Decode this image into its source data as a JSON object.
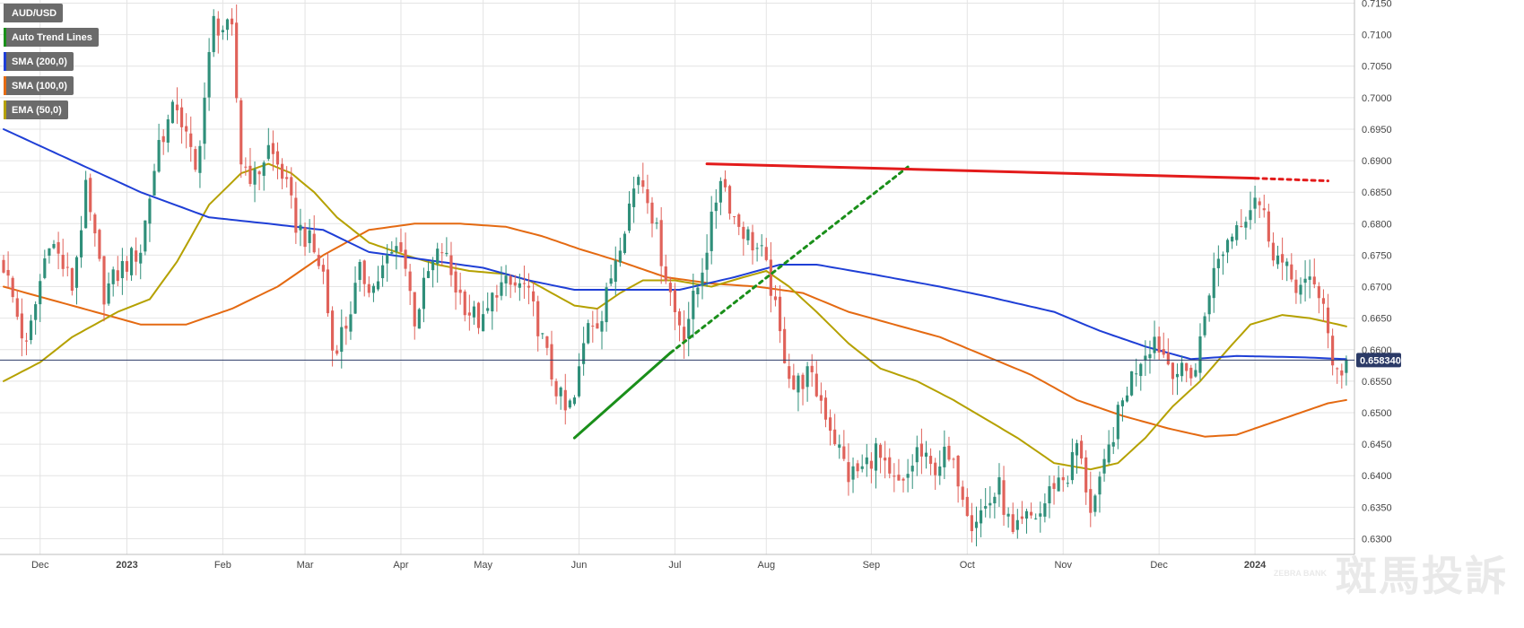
{
  "legend": [
    {
      "label": "AUD/USD",
      "color": "#6b6b6b"
    },
    {
      "label": "Auto Trend Lines",
      "color": "#1a8f1a"
    },
    {
      "label": "SMA (200,0)",
      "color": "#1f3fd6"
    },
    {
      "label": "SMA (100,0)",
      "color": "#e46a12"
    },
    {
      "label": "EMA (50,0)",
      "color": "#b5a100"
    }
  ],
  "watermark": {
    "badge": "ZEBRA BANK",
    "text": "斑馬投訴"
  },
  "chart_data": {
    "type": "candlestick",
    "symbol": "AUD/USD",
    "last_price_label": "0.658340",
    "last_price": 0.65834,
    "ylim": [
      0.6275,
      0.7155
    ],
    "y_ticks": [
      "0.6300",
      "0.6350",
      "0.6400",
      "0.6450",
      "0.6500",
      "0.6550",
      "0.6600",
      "0.6650",
      "0.6700",
      "0.6750",
      "0.6800",
      "0.6850",
      "0.6900",
      "0.6950",
      "0.7000",
      "0.7050",
      "0.7100",
      "0.7150"
    ],
    "x_ticks": [
      {
        "label": "Dec",
        "i": 8
      },
      {
        "label": "2023",
        "i": 27
      },
      {
        "label": "Feb",
        "i": 48
      },
      {
        "label": "Mar",
        "i": 66
      },
      {
        "label": "Apr",
        "i": 87
      },
      {
        "label": "May",
        "i": 105
      },
      {
        "label": "Jun",
        "i": 126
      },
      {
        "label": "Jul",
        "i": 147
      },
      {
        "label": "Aug",
        "i": 167
      },
      {
        "label": "Sep",
        "i": 190
      },
      {
        "label": "Oct",
        "i": 211
      },
      {
        "label": "Nov",
        "i": 232
      },
      {
        "label": "Dec",
        "i": 253
      },
      {
        "label": "2024",
        "i": 274
      }
    ],
    "close_anchors": [
      [
        0,
        0.6735
      ],
      [
        5,
        0.66
      ],
      [
        10,
        0.678
      ],
      [
        15,
        0.67
      ],
      [
        18,
        0.685
      ],
      [
        22,
        0.669
      ],
      [
        26,
        0.673
      ],
      [
        30,
        0.676
      ],
      [
        34,
        0.693
      ],
      [
        38,
        0.699
      ],
      [
        42,
        0.688
      ],
      [
        46,
        0.712
      ],
      [
        50,
        0.71
      ],
      [
        52,
        0.69
      ],
      [
        55,
        0.687
      ],
      [
        58,
        0.692
      ],
      [
        61,
        0.688
      ],
      [
        64,
        0.68
      ],
      [
        67,
        0.677
      ],
      [
        70,
        0.672
      ],
      [
        72,
        0.66
      ],
      [
        75,
        0.664
      ],
      [
        78,
        0.672
      ],
      [
        81,
        0.67
      ],
      [
        84,
        0.674
      ],
      [
        87,
        0.677
      ],
      [
        90,
        0.665
      ],
      [
        93,
        0.672
      ],
      [
        96,
        0.676
      ],
      [
        99,
        0.67
      ],
      [
        102,
        0.666
      ],
      [
        105,
        0.664
      ],
      [
        108,
        0.67
      ],
      [
        111,
        0.67
      ],
      [
        114,
        0.67
      ],
      [
        117,
        0.664
      ],
      [
        120,
        0.656
      ],
      [
        123,
        0.65
      ],
      [
        125,
        0.652
      ],
      [
        128,
        0.665
      ],
      [
        131,
        0.665
      ],
      [
        134,
        0.675
      ],
      [
        137,
        0.683
      ],
      [
        139,
        0.688
      ],
      [
        141,
        0.685
      ],
      [
        144,
        0.675
      ],
      [
        147,
        0.666
      ],
      [
        149,
        0.663
      ],
      [
        152,
        0.67
      ],
      [
        155,
        0.68
      ],
      [
        157,
        0.688
      ],
      [
        160,
        0.681
      ],
      [
        163,
        0.678
      ],
      [
        166,
        0.675
      ],
      [
        168,
        0.67
      ],
      [
        170,
        0.662
      ],
      [
        173,
        0.654
      ],
      [
        176,
        0.656
      ],
      [
        179,
        0.652
      ],
      [
        182,
        0.646
      ],
      [
        185,
        0.64
      ],
      [
        188,
        0.641
      ],
      [
        191,
        0.644
      ],
      [
        194,
        0.639
      ],
      [
        197,
        0.638
      ],
      [
        200,
        0.644
      ],
      [
        203,
        0.641
      ],
      [
        206,
        0.643
      ],
      [
        209,
        0.64
      ],
      [
        212,
        0.633
      ],
      [
        215,
        0.635
      ],
      [
        218,
        0.638
      ],
      [
        221,
        0.63
      ],
      [
        224,
        0.633
      ],
      [
        227,
        0.634
      ],
      [
        230,
        0.639
      ],
      [
        233,
        0.64
      ],
      [
        235,
        0.645
      ],
      [
        238,
        0.635
      ],
      [
        240,
        0.638
      ],
      [
        243,
        0.647
      ],
      [
        246,
        0.654
      ],
      [
        249,
        0.659
      ],
      [
        252,
        0.662
      ],
      [
        255,
        0.658
      ],
      [
        258,
        0.656
      ],
      [
        261,
        0.657
      ],
      [
        264,
        0.67
      ],
      [
        267,
        0.676
      ],
      [
        270,
        0.68
      ],
      [
        273,
        0.683
      ],
      [
        274,
        0.685
      ],
      [
        276,
        0.681
      ],
      [
        278,
        0.676
      ],
      [
        281,
        0.672
      ],
      [
        284,
        0.67
      ],
      [
        287,
        0.67
      ],
      [
        289,
        0.668
      ],
      [
        291,
        0.656
      ],
      [
        293,
        0.657
      ],
      [
        294,
        0.6583
      ]
    ],
    "sma200": [
      [
        0,
        0.695
      ],
      [
        15,
        0.69
      ],
      [
        30,
        0.685
      ],
      [
        45,
        0.681
      ],
      [
        58,
        0.68
      ],
      [
        70,
        0.679
      ],
      [
        80,
        0.6755
      ],
      [
        95,
        0.674
      ],
      [
        105,
        0.673
      ],
      [
        115,
        0.671
      ],
      [
        125,
        0.6695
      ],
      [
        135,
        0.6695
      ],
      [
        148,
        0.6695
      ],
      [
        160,
        0.6715
      ],
      [
        170,
        0.6735
      ],
      [
        178,
        0.6735
      ],
      [
        190,
        0.672
      ],
      [
        205,
        0.67
      ],
      [
        215,
        0.6685
      ],
      [
        230,
        0.666
      ],
      [
        240,
        0.663
      ],
      [
        250,
        0.6605
      ],
      [
        260,
        0.6585
      ],
      [
        270,
        0.659
      ],
      [
        284,
        0.6588
      ],
      [
        294,
        0.6585
      ]
    ],
    "sma100": [
      [
        0,
        0.67
      ],
      [
        10,
        0.668
      ],
      [
        20,
        0.666
      ],
      [
        30,
        0.664
      ],
      [
        40,
        0.664
      ],
      [
        50,
        0.6665
      ],
      [
        60,
        0.67
      ],
      [
        70,
        0.675
      ],
      [
        80,
        0.679
      ],
      [
        90,
        0.68
      ],
      [
        100,
        0.68
      ],
      [
        110,
        0.6795
      ],
      [
        118,
        0.678
      ],
      [
        126,
        0.676
      ],
      [
        135,
        0.674
      ],
      [
        145,
        0.6715
      ],
      [
        155,
        0.6705
      ],
      [
        165,
        0.67
      ],
      [
        175,
        0.669
      ],
      [
        185,
        0.666
      ],
      [
        195,
        0.664
      ],
      [
        205,
        0.662
      ],
      [
        215,
        0.659
      ],
      [
        225,
        0.656
      ],
      [
        235,
        0.652
      ],
      [
        245,
        0.6495
      ],
      [
        255,
        0.6475
      ],
      [
        263,
        0.6462
      ],
      [
        270,
        0.6465
      ],
      [
        280,
        0.649
      ],
      [
        290,
        0.6515
      ],
      [
        294,
        0.652
      ]
    ],
    "ema50": [
      [
        0,
        0.655
      ],
      [
        8,
        0.658
      ],
      [
        15,
        0.662
      ],
      [
        25,
        0.666
      ],
      [
        32,
        0.668
      ],
      [
        38,
        0.674
      ],
      [
        45,
        0.683
      ],
      [
        52,
        0.688
      ],
      [
        58,
        0.6895
      ],
      [
        63,
        0.688
      ],
      [
        68,
        0.685
      ],
      [
        73,
        0.681
      ],
      [
        80,
        0.677
      ],
      [
        88,
        0.675
      ],
      [
        95,
        0.6735
      ],
      [
        102,
        0.6725
      ],
      [
        110,
        0.672
      ],
      [
        115,
        0.671
      ],
      [
        120,
        0.669
      ],
      [
        125,
        0.667
      ],
      [
        130,
        0.6665
      ],
      [
        135,
        0.669
      ],
      [
        140,
        0.671
      ],
      [
        147,
        0.671
      ],
      [
        155,
        0.67
      ],
      [
        162,
        0.6715
      ],
      [
        167,
        0.6725
      ],
      [
        172,
        0.67
      ],
      [
        178,
        0.666
      ],
      [
        185,
        0.661
      ],
      [
        192,
        0.657
      ],
      [
        200,
        0.655
      ],
      [
        208,
        0.652
      ],
      [
        215,
        0.649
      ],
      [
        222,
        0.646
      ],
      [
        230,
        0.642
      ],
      [
        238,
        0.641
      ],
      [
        244,
        0.642
      ],
      [
        250,
        0.646
      ],
      [
        256,
        0.651
      ],
      [
        262,
        0.655
      ],
      [
        268,
        0.66
      ],
      [
        273,
        0.664
      ],
      [
        280,
        0.6655
      ],
      [
        286,
        0.665
      ],
      [
        291,
        0.6642
      ],
      [
        294,
        0.6637
      ]
    ],
    "trend_lines": [
      {
        "color": "#1a8f1a",
        "style": "solid",
        "points": [
          [
            125,
            0.646
          ],
          [
            146,
            0.6595
          ]
        ]
      },
      {
        "color": "#1a8f1a",
        "style": "dotted",
        "points": [
          [
            146,
            0.6595
          ],
          [
            198,
            0.689
          ]
        ]
      },
      {
        "color": "#e31b1b",
        "style": "solid",
        "points": [
          [
            154,
            0.6895
          ],
          [
            274,
            0.6872
          ]
        ]
      },
      {
        "color": "#e31b1b",
        "style": "dotted",
        "points": [
          [
            274,
            0.6872
          ],
          [
            290,
            0.6868
          ]
        ]
      }
    ],
    "n_bars": 295,
    "grid": true
  }
}
